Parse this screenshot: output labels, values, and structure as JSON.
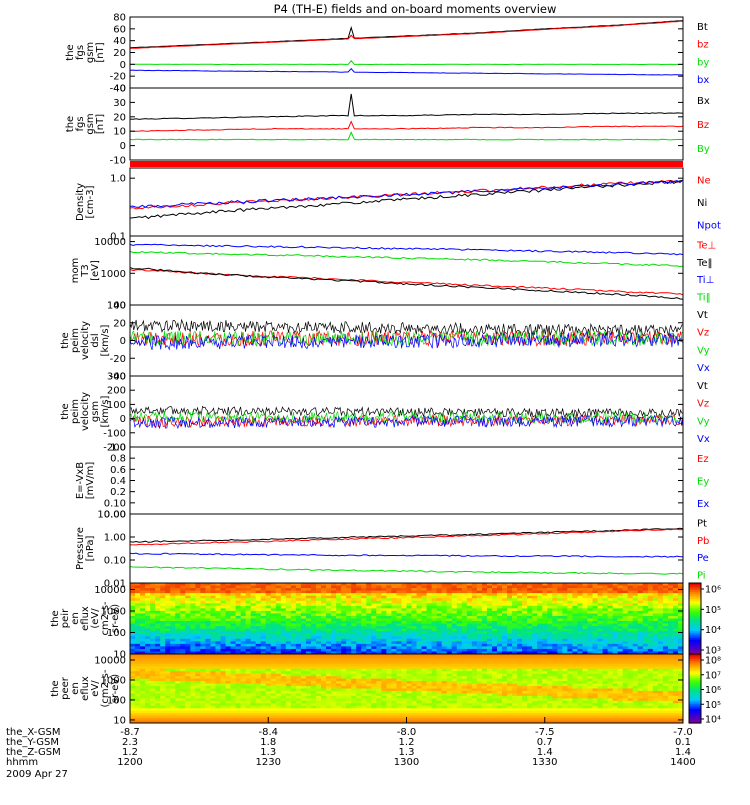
{
  "title": "P4 (TH-E) fields and on-board moments overview",
  "date_label": "2009 Apr 27",
  "colors": {
    "black": "#000000",
    "red": "#ff0000",
    "green": "#00dd00",
    "blue": "#0000ff"
  },
  "chart_data": [
    {
      "type": "line",
      "id": "fgs-gsm",
      "ylabel": [
        "the",
        "fgs",
        "gsm",
        "[nT]"
      ],
      "ylim": [
        -40,
        80
      ],
      "yticks": [
        "80",
        "60",
        "40",
        "20",
        "0",
        "-20",
        "-40"
      ],
      "legend": [
        "Bt",
        "bz",
        "by",
        "bx"
      ],
      "series": [
        {
          "name": "Bt",
          "color": "black",
          "y": [
            28,
            33,
            38,
            43,
            48,
            53,
            60,
            66,
            74
          ]
        },
        {
          "name": "bz",
          "color": "red",
          "y": [
            27,
            32,
            37,
            42,
            47,
            52,
            59,
            65,
            73
          ]
        },
        {
          "name": "by",
          "color": "green",
          "y": [
            0,
            0,
            0,
            0,
            0,
            0,
            0,
            0,
            0
          ]
        },
        {
          "name": "bx",
          "color": "blue",
          "y": [
            -10,
            -11,
            -12,
            -13,
            -14,
            -15,
            -16,
            -17,
            -18
          ]
        }
      ]
    },
    {
      "type": "line",
      "id": "fgs-gsm-zoom",
      "ylabel": [
        "the",
        "fgs",
        "gsm",
        "[nT]"
      ],
      "ylim": [
        -20,
        40
      ],
      "yticks": [
        "40",
        "30",
        "20",
        "10",
        "0",
        "-10"
      ],
      "legend": [
        "Bx",
        "Bz",
        "By"
      ],
      "series": [
        {
          "name": "Bx",
          "color": "black",
          "y": [
            14,
            15,
            16,
            17,
            17,
            18,
            18,
            19,
            19
          ]
        },
        {
          "name": "Bz",
          "color": "red",
          "y": [
            4,
            5,
            6,
            6,
            6,
            7,
            7,
            8,
            8
          ]
        },
        {
          "name": "By",
          "color": "green",
          "y": [
            -3,
            -3,
            -3,
            -3,
            -3,
            -3,
            -3,
            -3,
            -3
          ]
        }
      ]
    },
    {
      "type": "line",
      "id": "density",
      "ylabel": [
        "Density",
        "[cm-3]"
      ],
      "ylim": [
        0.1,
        1.5
      ],
      "ylog": true,
      "yticks": [
        "1.0",
        "0.1"
      ],
      "legend": [
        "Ne",
        "Ni",
        "Npot"
      ],
      "series": [
        {
          "name": "Ne",
          "color": "red",
          "y": [
            0.3,
            0.35,
            0.4,
            0.46,
            0.52,
            0.6,
            0.7,
            0.8,
            0.9
          ]
        },
        {
          "name": "Ni",
          "color": "black",
          "y": [
            0.2,
            0.25,
            0.3,
            0.36,
            0.43,
            0.52,
            0.62,
            0.75,
            0.88
          ]
        },
        {
          "name": "Npot",
          "color": "blue",
          "y": [
            0.32,
            0.36,
            0.41,
            0.46,
            0.52,
            0.59,
            0.68,
            0.78,
            0.88
          ]
        }
      ]
    },
    {
      "type": "line",
      "id": "temperature",
      "ylabel": [
        "mom",
        "T3",
        "[eV]"
      ],
      "ylim": [
        100,
        15000
      ],
      "ylog": true,
      "yticks": [
        "10000",
        "1000",
        "100"
      ],
      "legend": [
        "Te⊥",
        "Te‖",
        "Ti⊥",
        "Ti‖"
      ],
      "series": [
        {
          "name": "Te⊥",
          "color": "red",
          "y": [
            1300,
            1000,
            800,
            650,
            520,
            420,
            340,
            270,
            220
          ]
        },
        {
          "name": "Te‖",
          "color": "black",
          "y": [
            1500,
            1000,
            750,
            600,
            460,
            360,
            280,
            220,
            160
          ]
        },
        {
          "name": "Ti⊥",
          "color": "blue",
          "y": [
            8000,
            7500,
            7000,
            6500,
            6000,
            5500,
            5000,
            4500,
            4000
          ]
        },
        {
          "name": "Ti‖",
          "color": "green",
          "y": [
            4800,
            4200,
            3800,
            3400,
            3000,
            2700,
            2300,
            2000,
            1700
          ]
        }
      ]
    },
    {
      "type": "line",
      "id": "peim-velocity-1",
      "ylabel": [
        "the",
        "peim",
        "velocity",
        "dsl",
        "[km/s]"
      ],
      "ylim": [
        -45,
        40
      ],
      "yticks": [
        "40",
        "20",
        "0",
        "-20",
        "-40"
      ],
      "legend": [
        "Vt",
        "Vz",
        "Vy",
        "Vx"
      ],
      "series": [
        {
          "name": "Vt",
          "color": "black",
          "y": [
            15,
            15,
            14,
            13,
            12,
            11,
            10,
            10,
            10
          ]
        },
        {
          "name": "Vz",
          "color": "red",
          "y": [
            0,
            0,
            0,
            0,
            0,
            0,
            0,
            0,
            0
          ]
        },
        {
          "name": "Vy",
          "color": "green",
          "y": [
            0,
            0,
            0,
            0,
            0,
            0,
            0,
            0,
            0
          ]
        },
        {
          "name": "Vx",
          "color": "blue",
          "y": [
            -5,
            -5,
            -4,
            -4,
            -3,
            -3,
            -2,
            -2,
            -2
          ]
        }
      ]
    },
    {
      "type": "line",
      "id": "peim-velocity-2",
      "ylabel": [
        "the",
        "peim",
        "velocity",
        "gsm",
        "[km/s]"
      ],
      "ylim": [
        -200,
        300
      ],
      "yticks": [
        "300",
        "200",
        "100",
        "0",
        "-100",
        "-200"
      ],
      "legend": [
        "Vt",
        "Vz",
        "Vy",
        "Vx"
      ],
      "series": [
        {
          "name": "Vt",
          "color": "black",
          "y": [
            60,
            55,
            50,
            48,
            45,
            42,
            40,
            38,
            35
          ]
        },
        {
          "name": "Vz",
          "color": "red",
          "y": [
            -20,
            -20,
            -18,
            -18,
            -15,
            -15,
            -12,
            -12,
            -10
          ]
        },
        {
          "name": "Vy",
          "color": "green",
          "y": [
            10,
            10,
            8,
            8,
            6,
            6,
            5,
            5,
            5
          ]
        },
        {
          "name": "Vx",
          "color": "blue",
          "y": [
            -30,
            -28,
            -26,
            -24,
            -22,
            -20,
            -18,
            -16,
            -15
          ]
        }
      ]
    },
    {
      "type": "line",
      "id": "e-vxb",
      "ylabel": [
        "E=-VxB",
        "[mV/m]"
      ],
      "ylim": [
        0,
        1
      ],
      "yticks": [
        "1.0",
        "0.8",
        "0.6",
        "0.4",
        "0.2",
        "0.10",
        "0.00"
      ],
      "legend": [
        "Ez",
        "Ey",
        "Ex"
      ],
      "series": []
    },
    {
      "type": "line",
      "id": "pressure",
      "ylabel": [
        "Pressure",
        "[nPa]"
      ],
      "ylim": [
        0.01,
        10
      ],
      "ylog": true,
      "yticks": [
        "10.00",
        "1.00",
        "0.10",
        "0.01"
      ],
      "legend": [
        "Pt",
        "Pb",
        "Pe",
        "Pi"
      ],
      "series": [
        {
          "name": "Pt",
          "color": "black",
          "y": [
            0.6,
            0.7,
            0.8,
            0.95,
            1.1,
            1.3,
            1.6,
            1.9,
            2.4
          ]
        },
        {
          "name": "Pb",
          "color": "red",
          "y": [
            0.45,
            0.55,
            0.65,
            0.8,
            0.95,
            1.15,
            1.4,
            1.75,
            2.2
          ]
        },
        {
          "name": "Pe",
          "color": "blue",
          "y": [
            0.19,
            0.18,
            0.17,
            0.16,
            0.16,
            0.15,
            0.15,
            0.14,
            0.14
          ]
        },
        {
          "name": "Pi",
          "color": "green",
          "y": [
            0.05,
            0.045,
            0.04,
            0.036,
            0.033,
            0.03,
            0.028,
            0.026,
            0.025
          ]
        }
      ]
    },
    {
      "type": "heatmap",
      "id": "peir-spectrogram",
      "ylabel": [
        "the",
        "peir",
        "en",
        "eflux",
        "(eV/",
        "cm2-s-",
        "sr-eV)"
      ],
      "ylim": [
        10,
        20000
      ],
      "ylog": true,
      "yticks": [
        "10000",
        "1000",
        "100",
        "10"
      ],
      "colorbar_ticks": [
        "10⁶",
        "10⁵",
        "10⁴",
        "10³"
      ],
      "colorbar_range_exp": [
        2.5,
        6.5
      ]
    },
    {
      "type": "heatmap",
      "id": "peer-spectrogram",
      "ylabel": [
        "the",
        "peer",
        "en",
        "eflux",
        "eV/",
        "(cm2-s-",
        "sr-eV)"
      ],
      "ylim": [
        7,
        20000
      ],
      "ylog": true,
      "yticks": [
        "10000",
        "1000",
        "100",
        "10"
      ],
      "colorbar_ticks": [
        "10⁸",
        "10⁷",
        "10⁶",
        "10⁵",
        "10⁴"
      ],
      "colorbar_range_exp": [
        3.8,
        8.2
      ]
    }
  ],
  "x_axis": {
    "rows": [
      {
        "label": "the_X-GSM",
        "values": [
          "-8.7",
          "-8.4",
          "-8.0",
          "-7.5",
          "-7.0"
        ]
      },
      {
        "label": "the_Y-GSM",
        "values": [
          "2.3",
          "1.8",
          "1.2",
          "0.7",
          "0.1"
        ]
      },
      {
        "label": "the_Z-GSM",
        "values": [
          "1.2",
          "1.3",
          "1.3",
          "1.4",
          "1.4"
        ]
      },
      {
        "label": "hhmm",
        "values": [
          "1200",
          "1230",
          "1300",
          "1330",
          "1400"
        ]
      }
    ]
  }
}
